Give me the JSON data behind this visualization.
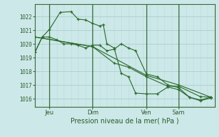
{
  "background_color": "#cce8e8",
  "grid_color_major": "#aacccc",
  "grid_color_minor": "#bbdddd",
  "line_color": "#2d6a2d",
  "title": "Pression niveau de la mer( hPa )",
  "ylabel_values": [
    1016,
    1017,
    1018,
    1019,
    1020,
    1021,
    1022
  ],
  "ylim": [
    1015.4,
    1022.9
  ],
  "xlim": [
    0,
    100
  ],
  "xtick_positions": [
    8,
    32,
    62,
    80
  ],
  "xtick_labels": [
    "Jeu",
    "Dim",
    "Ven",
    "Sam"
  ],
  "vline_positions": [
    8,
    32,
    62,
    80
  ],
  "series": [
    {
      "x": [
        0,
        4,
        8,
        12,
        16,
        20,
        24,
        28,
        32,
        36,
        40,
        44,
        48,
        52,
        56,
        62,
        68,
        74,
        80,
        86,
        92,
        98
      ],
      "y": [
        1019.4,
        1020.5,
        1020.5,
        1020.3,
        1020.0,
        1020.0,
        1019.9,
        1019.7,
        1019.9,
        1019.9,
        1019.5,
        1019.6,
        1020.0,
        1019.7,
        1019.5,
        1017.8,
        1017.6,
        1017.0,
        1016.8,
        1016.1,
        1015.9,
        1016.1
      ]
    },
    {
      "x": [
        0,
        32,
        62,
        80,
        98
      ],
      "y": [
        1020.5,
        1019.8,
        1017.7,
        1017.0,
        1016.1
      ]
    },
    {
      "x": [
        0,
        32,
        44,
        52,
        62,
        74,
        80,
        92,
        98
      ],
      "y": [
        1020.5,
        1019.8,
        1018.6,
        1018.3,
        1017.6,
        1016.9,
        1016.9,
        1016.15,
        1016.1
      ]
    },
    {
      "x": [
        0,
        4,
        8,
        14,
        20,
        24,
        28,
        32,
        36,
        38,
        40,
        44,
        48,
        52,
        56,
        62,
        68,
        74,
        80,
        86,
        92,
        98
      ],
      "y": [
        1019.4,
        1020.5,
        1021.05,
        1022.3,
        1022.35,
        1021.8,
        1021.75,
        1021.5,
        1021.3,
        1021.4,
        1020.0,
        1019.7,
        1017.85,
        1017.6,
        1016.4,
        1016.35,
        1016.35,
        1016.85,
        1016.65,
        1016.1,
        1015.85,
        1016.05
      ]
    }
  ]
}
